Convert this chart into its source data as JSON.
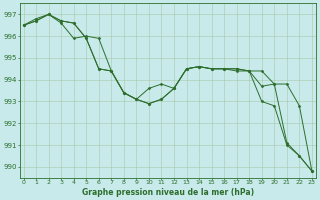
{
  "title": "Graphe pression niveau de la mer (hPa)",
  "background_color": "#c8eaea",
  "grid_color": "#a8c8a8",
  "line_color": "#2d6e2d",
  "marker_color": "#2d6e2d",
  "ylim": [
    989.5,
    997.5
  ],
  "xlim": [
    -0.3,
    23.3
  ],
  "yticks": [
    990,
    991,
    992,
    993,
    994,
    995,
    996,
    997
  ],
  "xticks": [
    0,
    1,
    2,
    3,
    4,
    5,
    6,
    7,
    8,
    9,
    10,
    11,
    12,
    13,
    14,
    15,
    16,
    17,
    18,
    19,
    20,
    21,
    22,
    23
  ],
  "series": [
    [
      996.5,
      996.7,
      997.0,
      996.7,
      996.6,
      995.9,
      994.5,
      994.4,
      993.4,
      993.1,
      993.6,
      993.8,
      993.6,
      994.5,
      994.6,
      994.5,
      994.5,
      994.5,
      994.4,
      994.4,
      993.8,
      993.8,
      992.8,
      989.8
    ],
    [
      996.5,
      996.7,
      997.0,
      996.7,
      996.6,
      995.9,
      994.5,
      994.4,
      993.4,
      993.1,
      992.9,
      993.1,
      993.6,
      994.5,
      994.6,
      994.5,
      994.5,
      994.5,
      994.4,
      993.0,
      992.8,
      991.0,
      990.5,
      989.8
    ],
    [
      996.5,
      996.8,
      997.0,
      996.6,
      995.9,
      996.0,
      995.9,
      994.4,
      993.4,
      993.1,
      992.9,
      993.1,
      993.6,
      994.5,
      994.6,
      994.5,
      994.5,
      994.4,
      994.4,
      993.7,
      993.8,
      991.1,
      990.5,
      989.8
    ]
  ],
  "figwidth": 3.2,
  "figheight": 2.0,
  "dpi": 100
}
